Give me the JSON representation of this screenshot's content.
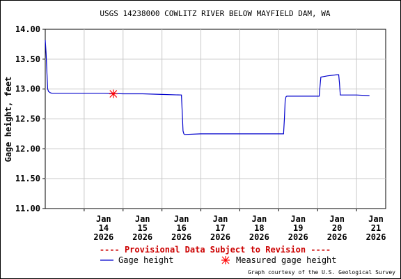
{
  "chart_data": {
    "type": "line",
    "title": "USGS 14238000 COWLITZ RIVER BELOW MAYFIELD DAM, WA",
    "ylabel": "Gage height, feet",
    "xlabel": "",
    "ylim": [
      11.0,
      14.0
    ],
    "xlim": [
      "2026-01-13 00:00",
      "2026-01-21 18:00"
    ],
    "yticks": [
      "11.00",
      "11.50",
      "12.00",
      "12.50",
      "13.00",
      "13.50",
      "14.00"
    ],
    "yticks_values": [
      11.0,
      11.5,
      12.0,
      12.5,
      13.0,
      13.5,
      14.0
    ],
    "xticks": [
      {
        "month": "Jan",
        "day": "14",
        "year": "2026"
      },
      {
        "month": "Jan",
        "day": "15",
        "year": "2026"
      },
      {
        "month": "Jan",
        "day": "16",
        "year": "2026"
      },
      {
        "month": "Jan",
        "day": "17",
        "year": "2026"
      },
      {
        "month": "Jan",
        "day": "18",
        "year": "2026"
      },
      {
        "month": "Jan",
        "day": "19",
        "year": "2026"
      },
      {
        "month": "Jan",
        "day": "20",
        "year": "2026"
      },
      {
        "month": "Jan",
        "day": "21",
        "year": "2026"
      }
    ],
    "grid": true,
    "series": [
      {
        "name": "Gage height",
        "color": "#0000cc",
        "x": [
          "2026-01-13 00:00",
          "2026-01-13 00:30",
          "2026-01-13 01:00",
          "2026-01-13 01:30",
          "2026-01-13 02:00",
          "2026-01-13 03:00",
          "2026-01-13 04:00",
          "2026-01-13 06:00",
          "2026-01-13 12:00",
          "2026-01-14 00:00",
          "2026-01-14 12:00",
          "2026-01-15 00:00",
          "2026-01-15 12:00",
          "2026-01-16 00:00",
          "2026-01-16 12:00",
          "2026-01-16 12:30",
          "2026-01-16 13:00",
          "2026-01-16 13:30",
          "2026-01-16 14:00",
          "2026-01-17 00:00",
          "2026-01-17 12:00",
          "2026-01-18 00:00",
          "2026-01-18 12:00",
          "2026-01-19 00:00",
          "2026-01-19 03:00",
          "2026-01-19 03:30",
          "2026-01-19 04:00",
          "2026-01-19 04:30",
          "2026-01-19 05:00",
          "2026-01-19 12:00",
          "2026-01-20 00:00",
          "2026-01-20 01:00",
          "2026-01-20 01:30",
          "2026-01-20 02:00",
          "2026-01-20 06:00",
          "2026-01-20 12:00",
          "2026-01-20 13:00",
          "2026-01-20 13:30",
          "2026-01-20 14:00",
          "2026-01-21 00:00",
          "2026-01-21 08:00"
        ],
        "values": [
          13.82,
          13.6,
          13.3,
          13.0,
          12.96,
          12.94,
          12.93,
          12.93,
          12.93,
          12.93,
          12.93,
          12.92,
          12.92,
          12.91,
          12.9,
          12.6,
          12.3,
          12.25,
          12.24,
          12.25,
          12.25,
          12.25,
          12.25,
          12.25,
          12.25,
          12.5,
          12.8,
          12.87,
          12.88,
          12.88,
          12.88,
          12.88,
          13.05,
          13.2,
          13.22,
          13.24,
          13.24,
          13.1,
          12.9,
          12.9,
          12.89
        ]
      }
    ],
    "measurements": {
      "name": "Measured gage height",
      "color": "#ff0000",
      "points": [
        {
          "x": "2026-01-14 18:00",
          "y": 12.92
        }
      ]
    },
    "provisional_note": "---- Provisional Data Subject to Revision ----",
    "courtesy": "Graph courtesy of the U.S. Geological Survey"
  }
}
